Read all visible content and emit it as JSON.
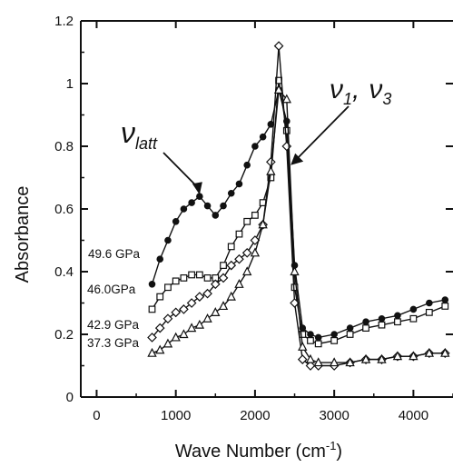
{
  "chart_data": {
    "type": "line",
    "title": "",
    "xlabel": "Wave Number (cm",
    "xlabel_superscript": "-1",
    "xlabel_suffix": ")",
    "ylabel": "Absorbance",
    "xlim": [
      -200,
      4500
    ],
    "ylim": [
      0,
      1.2
    ],
    "x_ticks": [
      0,
      1000,
      2000,
      3000,
      4000
    ],
    "x_tick_labels": [
      "0",
      "1000",
      "2000",
      "3000",
      "4000"
    ],
    "y_ticks": [
      0,
      0.2,
      0.4,
      0.6,
      0.8,
      1.0,
      1.2
    ],
    "y_tick_labels": [
      "0",
      "0.2",
      "0.4",
      "0.6",
      "0.8",
      "1",
      "1.2"
    ],
    "grid": false,
    "annotations": {
      "latt": {
        "main": "ν",
        "sub": "latt",
        "arrow_to": [
          1300,
          0.64
        ]
      },
      "nu13": {
        "nu1": "ν",
        "sub1": "1",
        "comma": ",",
        "nu3": "ν",
        "sub3": "3",
        "arrow_to": [
          2450,
          0.74
        ]
      }
    },
    "series": [
      {
        "name": "49.6 GPa",
        "marker": "filled-circle",
        "x": [
          700,
          800,
          900,
          1000,
          1100,
          1200,
          1300,
          1400,
          1500,
          1600,
          1700,
          1800,
          1900,
          2000,
          2100,
          2200,
          2300,
          2400,
          2500,
          2600,
          2700,
          2800,
          3000,
          3200,
          3400,
          3600,
          3800,
          4000,
          4200,
          4400
        ],
        "y": [
          0.36,
          0.44,
          0.5,
          0.56,
          0.6,
          0.62,
          0.64,
          0.61,
          0.58,
          0.61,
          0.65,
          0.68,
          0.74,
          0.8,
          0.83,
          0.87,
          0.98,
          0.88,
          0.42,
          0.22,
          0.2,
          0.19,
          0.2,
          0.22,
          0.24,
          0.25,
          0.26,
          0.28,
          0.3,
          0.31
        ]
      },
      {
        "name": "46.0GPa",
        "marker": "open-square",
        "x": [
          700,
          800,
          900,
          1000,
          1100,
          1200,
          1300,
          1400,
          1500,
          1600,
          1700,
          1800,
          1900,
          2000,
          2100,
          2200,
          2300,
          2400,
          2500,
          2600,
          2700,
          2800,
          3000,
          3200,
          3400,
          3600,
          3800,
          4000,
          4200,
          4400
        ],
        "y": [
          0.28,
          0.32,
          0.35,
          0.37,
          0.38,
          0.39,
          0.39,
          0.38,
          0.38,
          0.42,
          0.48,
          0.52,
          0.56,
          0.58,
          0.62,
          0.7,
          1.01,
          0.85,
          0.35,
          0.2,
          0.18,
          0.17,
          0.18,
          0.2,
          0.22,
          0.23,
          0.24,
          0.25,
          0.27,
          0.29
        ]
      },
      {
        "name": "42.9 GPa",
        "marker": "open-diamond",
        "x": [
          700,
          800,
          900,
          1000,
          1100,
          1200,
          1300,
          1400,
          1500,
          1600,
          1700,
          1800,
          1900,
          2000,
          2100,
          2200,
          2300,
          2400,
          2500,
          2600,
          2700,
          2800,
          3000,
          3200,
          3400,
          3600,
          3800,
          4000,
          4200,
          4400
        ],
        "y": [
          0.19,
          0.22,
          0.25,
          0.27,
          0.28,
          0.3,
          0.32,
          0.33,
          0.36,
          0.38,
          0.42,
          0.44,
          0.46,
          0.5,
          0.55,
          0.75,
          1.12,
          0.8,
          0.3,
          0.12,
          0.1,
          0.1,
          0.1,
          0.11,
          0.12,
          0.12,
          0.13,
          0.13,
          0.14,
          0.14
        ]
      },
      {
        "name": "37.3 GPa",
        "marker": "open-triangle",
        "x": [
          700,
          800,
          900,
          1000,
          1100,
          1200,
          1300,
          1400,
          1500,
          1600,
          1700,
          1800,
          1900,
          2000,
          2100,
          2200,
          2300,
          2400,
          2500,
          2600,
          2700,
          2800,
          3000,
          3200,
          3400,
          3600,
          3800,
          4000,
          4200,
          4400
        ],
        "y": [
          0.14,
          0.15,
          0.17,
          0.19,
          0.2,
          0.22,
          0.23,
          0.25,
          0.27,
          0.29,
          0.32,
          0.36,
          0.4,
          0.46,
          0.55,
          0.72,
          0.98,
          0.95,
          0.4,
          0.16,
          0.12,
          0.11,
          0.11,
          0.11,
          0.12,
          0.12,
          0.13,
          0.13,
          0.14,
          0.14
        ]
      }
    ]
  }
}
